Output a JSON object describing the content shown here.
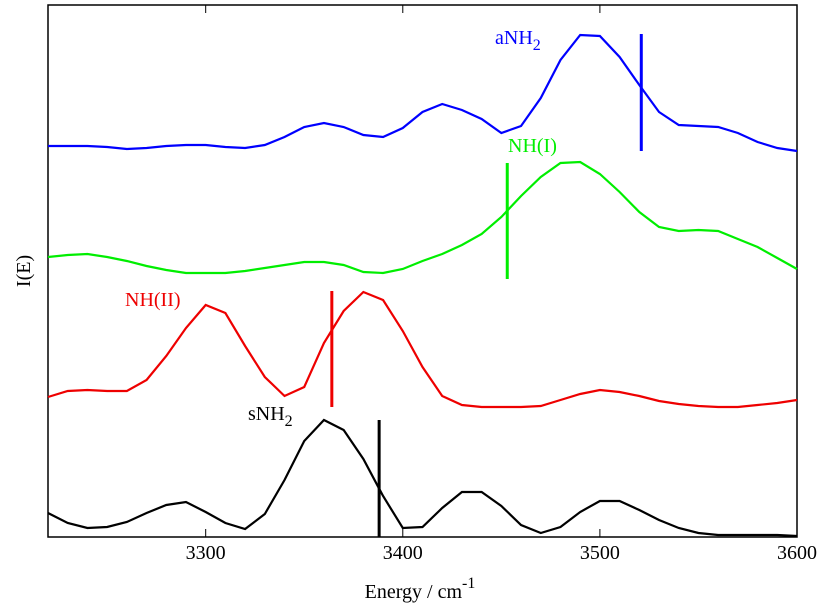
{
  "chart_data": {
    "type": "line",
    "xlabel": "Energy / cm",
    "xlabel_sup": "-1",
    "ylabel": "I(E)",
    "x": [
      3220,
      3230,
      3240,
      3250,
      3260,
      3270,
      3280,
      3290,
      3300,
      3310,
      3320,
      3330,
      3340,
      3350,
      3360,
      3370,
      3380,
      3390,
      3400,
      3410,
      3420,
      3430,
      3440,
      3450,
      3460,
      3470,
      3480,
      3490,
      3500,
      3510,
      3520,
      3530,
      3540,
      3550,
      3560,
      3570,
      3580,
      3590,
      3600
    ],
    "xlim": [
      3220,
      3600
    ],
    "xticks": [
      3300,
      3400,
      3500,
      3600
    ],
    "ylim": [
      0,
      532
    ],
    "series": [
      {
        "name": "aNH",
        "name_sub": "2",
        "color": "#0000ff",
        "values": [
          391,
          391,
          391,
          390,
          388,
          389,
          391,
          392,
          392,
          390,
          389,
          392,
          400,
          410,
          414,
          410,
          402,
          400,
          409,
          425,
          433,
          427,
          418,
          404,
          411,
          439,
          477,
          502,
          501,
          480,
          452,
          425,
          412,
          411,
          410,
          404,
          395,
          389,
          386
        ],
        "marker": {
          "x": 3521,
          "ymin": 386,
          "ymax": 503
        }
      },
      {
        "name": "NH(I)",
        "color": "#00ee00",
        "values": [
          280,
          282,
          283,
          280,
          276,
          271,
          267,
          264,
          264,
          264,
          266,
          269,
          272,
          275,
          275,
          272,
          265,
          264,
          268,
          276,
          283,
          292,
          303,
          320,
          341,
          360,
          374,
          375,
          363,
          345,
          325,
          310,
          306,
          307,
          306,
          298,
          290,
          279,
          268
        ],
        "marker": {
          "x": 3453,
          "ymin": 258,
          "ymax": 374
        }
      },
      {
        "name": "NH(II)",
        "color": "#ee0000",
        "values": [
          140,
          146,
          147,
          146,
          146,
          157,
          181,
          209,
          232,
          224,
          191,
          160,
          141,
          150,
          194,
          226,
          245,
          237,
          206,
          170,
          141,
          132,
          130,
          130,
          130,
          131,
          137,
          143,
          147,
          145,
          141,
          136,
          133,
          131,
          130,
          130,
          132,
          134,
          137
        ],
        "marker": {
          "x": 3364,
          "ymin": 130,
          "ymax": 246
        }
      },
      {
        "name": "sNH",
        "name_sub": "2",
        "color": "#000000",
        "values": [
          24,
          14,
          9,
          10,
          15,
          24,
          32,
          35,
          25,
          14,
          8,
          23,
          57,
          96,
          117,
          107,
          78,
          41,
          9,
          10,
          29,
          45,
          45,
          31,
          12,
          4,
          10,
          25,
          36,
          36,
          27,
          17,
          9,
          4,
          2,
          2,
          2,
          2,
          1
        ],
        "marker": {
          "x": 3388,
          "ymin": 0,
          "ymax": 117
        }
      }
    ]
  }
}
